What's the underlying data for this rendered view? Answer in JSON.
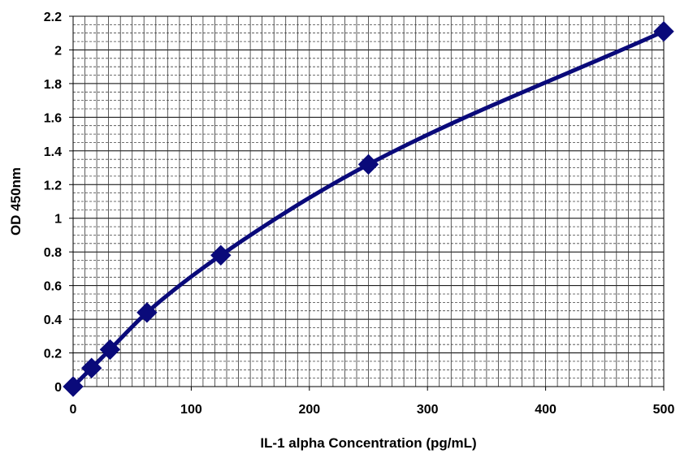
{
  "chart_data": {
    "type": "line",
    "title": "",
    "xlabel": "IL-1 alpha Concentration (pg/mL)",
    "ylabel": "OD 450nm",
    "xlim": [
      0,
      500
    ],
    "ylim": [
      0,
      2.2
    ],
    "x_ticks": [
      0,
      100,
      200,
      300,
      400,
      500
    ],
    "y_ticks": [
      0,
      0.2,
      0.4,
      0.6,
      0.8,
      1,
      1.2,
      1.4,
      1.6,
      1.8,
      2,
      2.2
    ],
    "x_tick_labels": [
      "0",
      "100",
      "200",
      "300",
      "400",
      "500"
    ],
    "y_tick_labels": [
      "0",
      "0.2",
      "0.4",
      "0.6",
      "0.8",
      "1",
      "1.2",
      "1.4",
      "1.6",
      "1.8",
      "2",
      "2.2"
    ],
    "grid": true,
    "legend": "none",
    "smooth": true,
    "series": [
      {
        "color": "#0a0a7a",
        "marker": "diamond",
        "x": [
          0,
          15.6,
          31.25,
          62.5,
          125,
          250,
          500
        ],
        "values": [
          0.0,
          0.11,
          0.22,
          0.44,
          0.78,
          1.32,
          2.11
        ]
      }
    ]
  }
}
